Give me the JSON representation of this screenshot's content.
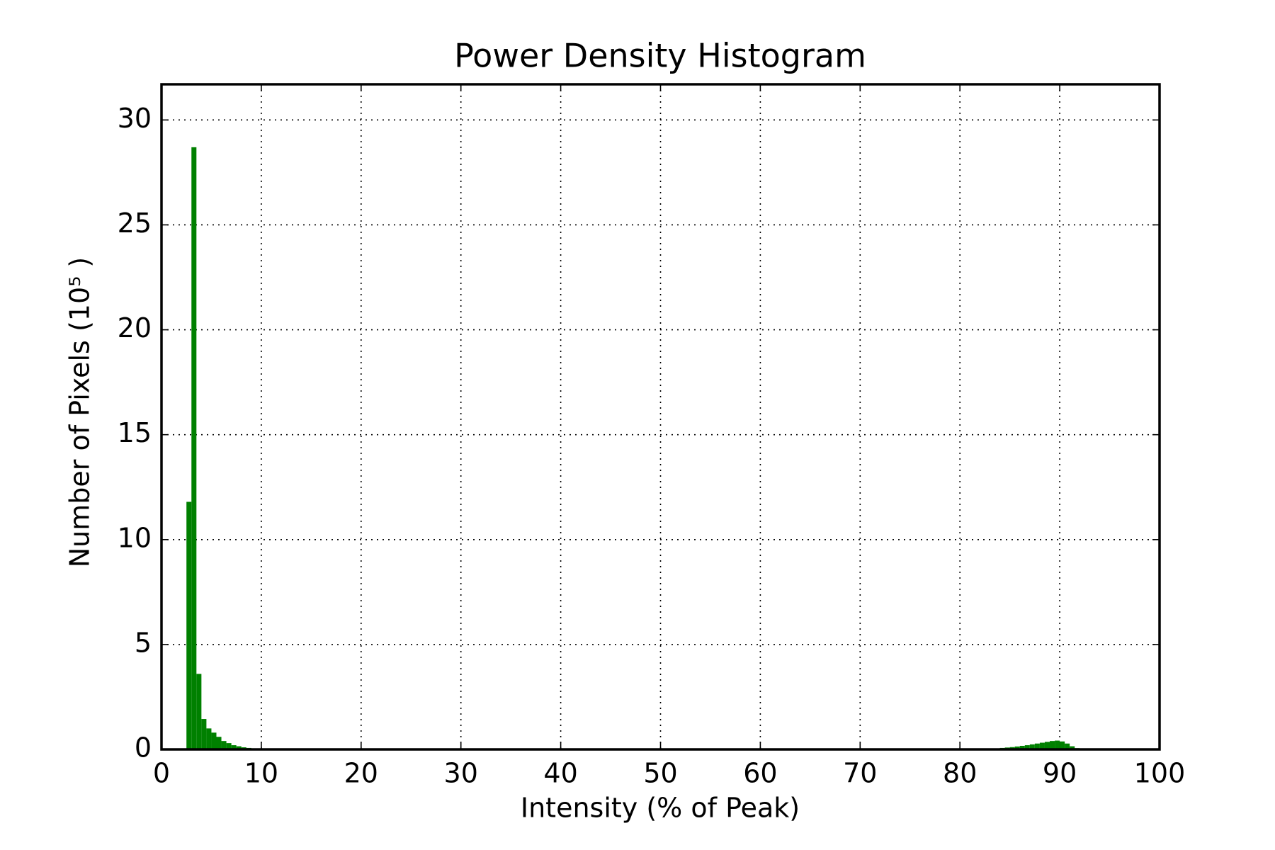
{
  "chart_data": {
    "type": "histogram",
    "title": "Power Density Histogram",
    "x_label": "Intensity (% of Peak)",
    "y_label": "Number of Pixels (10⁵ )",
    "color": "#008000",
    "grid": true,
    "xlim": [
      0,
      100
    ],
    "xticks": [
      0,
      10,
      20,
      30,
      40,
      50,
      60,
      70,
      80,
      90,
      100
    ],
    "ylim": [
      0,
      31.7
    ],
    "yticks": [
      0,
      5,
      10,
      15,
      20,
      25,
      30
    ],
    "bins": [
      2.5,
      3,
      3.5,
      4,
      4.5,
      5,
      5.5,
      6,
      6.5,
      7,
      7.5,
      8,
      8.5,
      9,
      9.5,
      10,
      10.5,
      11,
      11.5,
      12,
      12.5,
      13,
      13.5,
      14,
      14.5,
      15,
      15.5,
      16,
      16.5,
      17,
      17.5,
      18,
      18.5,
      19,
      19.5,
      20,
      20.5,
      21,
      21.5,
      22,
      22.5,
      23,
      23.5,
      24,
      24.5,
      25,
      25.5,
      26,
      26.5,
      27,
      27.5,
      28,
      28.5,
      29,
      29.5,
      30,
      30.5,
      31,
      31.5,
      32,
      32.5,
      33,
      33.5,
      34,
      34.5,
      35,
      35.5,
      36,
      36.5,
      37,
      37.5,
      38,
      38.5,
      39,
      39.5,
      40,
      40.5,
      41,
      41.5,
      42,
      42.5,
      43,
      43.5,
      44,
      44.5,
      45,
      45.5,
      46,
      46.5,
      47,
      47.5,
      48,
      48.5,
      49,
      49.5,
      50,
      50.5,
      51,
      51.5,
      52,
      52.5,
      53,
      53.5,
      54,
      54.5,
      55,
      55.5,
      56,
      56.5,
      57,
      57.5,
      58,
      58.5,
      59,
      59.5,
      60,
      60.5,
      61,
      61.5,
      62,
      62.5,
      63,
      63.5,
      64,
      64.5,
      65,
      65.5,
      66,
      66.5,
      67,
      67.5,
      68,
      68.5,
      69,
      69.5,
      70,
      70.5,
      71,
      71.5,
      72,
      72.5,
      73,
      73.5,
      74,
      74.5,
      75,
      75.5,
      76,
      76.5,
      77,
      77.5,
      78,
      78.5,
      79,
      79.5,
      80,
      80.5,
      81,
      81.5,
      82,
      82.5,
      83,
      83.5,
      84,
      84.5,
      85,
      85.5,
      86,
      86.5,
      87,
      87.5,
      88,
      88.5,
      89,
      89.5,
      90,
      90.5,
      91,
      91.5,
      92,
      92.5
    ],
    "values": [
      11.8,
      28.7,
      3.6,
      1.45,
      1.0,
      0.8,
      0.6,
      0.4,
      0.3,
      0.2,
      0.15,
      0.1,
      0.07,
      0.05,
      0.03,
      0,
      0,
      0,
      0,
      0,
      0,
      0,
      0,
      0,
      0,
      0,
      0,
      0,
      0,
      0,
      0,
      0,
      0,
      0,
      0,
      0,
      0,
      0,
      0,
      0,
      0,
      0,
      0,
      0,
      0,
      0,
      0,
      0,
      0,
      0,
      0,
      0,
      0,
      0,
      0,
      0,
      0,
      0,
      0,
      0,
      0,
      0,
      0,
      0,
      0,
      0,
      0,
      0,
      0,
      0,
      0,
      0,
      0,
      0,
      0,
      0,
      0,
      0,
      0,
      0,
      0,
      0,
      0,
      0,
      0,
      0,
      0,
      0,
      0,
      0,
      0,
      0,
      0,
      0,
      0,
      0,
      0,
      0,
      0,
      0,
      0,
      0,
      0,
      0,
      0,
      0,
      0,
      0,
      0,
      0,
      0,
      0,
      0,
      0,
      0,
      0,
      0,
      0,
      0,
      0,
      0,
      0,
      0,
      0,
      0,
      0,
      0,
      0,
      0,
      0,
      0,
      0,
      0,
      0,
      0,
      0,
      0,
      0,
      0,
      0,
      0,
      0,
      0,
      0,
      0,
      0,
      0,
      0,
      0,
      0,
      0,
      0,
      0,
      0,
      0,
      0,
      0,
      0,
      0,
      0.01,
      0.02,
      0.03,
      0.05,
      0.07,
      0.09,
      0.11,
      0.14,
      0.17,
      0.2,
      0.24,
      0.28,
      0.32,
      0.36,
      0.4,
      0.42,
      0.38,
      0.28,
      0.15,
      0.06,
      0.02
    ]
  }
}
